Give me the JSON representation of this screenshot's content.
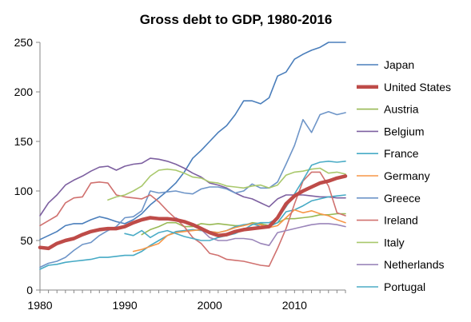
{
  "chart_data": {
    "type": "line",
    "title": "Gross debt to GDP, 1980-2016",
    "xlabel": "",
    "ylabel": "",
    "xlim": [
      1980,
      2016
    ],
    "ylim": [
      0,
      250
    ],
    "x_ticks": [
      1980,
      1990,
      2000,
      2010
    ],
    "y_ticks": [
      0,
      50,
      100,
      150,
      200,
      250
    ],
    "grid": false,
    "legend_position": "right",
    "series": [
      {
        "name": "Japan",
        "color": "#4a7ebb",
        "width": 1.6,
        "start": 1980,
        "values": [
          51,
          55,
          59,
          65,
          67,
          67,
          71,
          74,
          72,
          69,
          67,
          71,
          77,
          86,
          93,
          100,
          108,
          119,
          133,
          141,
          150,
          159,
          166,
          177,
          191,
          191,
          188,
          194,
          216,
          220,
          233,
          238,
          242,
          245,
          250,
          250,
          250
        ]
      },
      {
        "name": "United States",
        "color": "#be4b48",
        "width": 4.5,
        "start": 1980,
        "values": [
          43,
          42,
          47,
          50,
          52,
          56,
          59,
          61,
          62,
          62,
          64,
          68,
          71,
          73,
          72,
          72,
          71,
          69,
          66,
          62,
          58,
          55,
          56,
          59,
          61,
          62,
          63,
          64,
          73,
          87,
          95,
          100,
          104,
          108,
          110,
          113,
          115
        ]
      },
      {
        "name": "Austria",
        "color": "#98b954",
        "width": 1.6,
        "start": 1980,
        "values": [
          null,
          null,
          null,
          null,
          null,
          null,
          null,
          null,
          null,
          null,
          null,
          null,
          56,
          61,
          64,
          68,
          68,
          64,
          64,
          67,
          66,
          67,
          66,
          65,
          65,
          68,
          67,
          65,
          68,
          72,
          72,
          73,
          74,
          76,
          76,
          77,
          77
        ]
      },
      {
        "name": "Belgium",
        "color": "#7d60a0",
        "width": 1.6,
        "start": 1980,
        "values": [
          75,
          88,
          96,
          106,
          111,
          115,
          120,
          124,
          125,
          121,
          125,
          127,
          128,
          133,
          132,
          130,
          127,
          123,
          118,
          114,
          108,
          106,
          103,
          98,
          94,
          92,
          88,
          84,
          92,
          96,
          96,
          96,
          95,
          94,
          94,
          93,
          93
        ]
      },
      {
        "name": "France",
        "color": "#46aac5",
        "width": 1.6,
        "start": 1980,
        "values": [
          21,
          25,
          26,
          28,
          29,
          30,
          31,
          33,
          33,
          34,
          35,
          35,
          39,
          45,
          50,
          55,
          59,
          60,
          61,
          60,
          59,
          58,
          60,
          64,
          66,
          67,
          64,
          64,
          68,
          79,
          81,
          85,
          90,
          92,
          94,
          95,
          96
        ]
      },
      {
        "name": "Germany",
        "color": "#f79646",
        "width": 1.6,
        "start": 1980,
        "values": [
          null,
          null,
          null,
          null,
          null,
          null,
          null,
          null,
          null,
          null,
          null,
          39,
          41,
          44,
          47,
          55,
          58,
          59,
          60,
          61,
          59,
          58,
          60,
          63,
          65,
          67,
          66,
          63,
          65,
          73,
          81,
          78,
          80,
          77,
          75,
          71,
          68
        ]
      },
      {
        "name": "Greece",
        "color": "#6e95c8",
        "width": 1.6,
        "start": 1980,
        "values": [
          23,
          27,
          29,
          33,
          40,
          46,
          48,
          55,
          60,
          64,
          73,
          74,
          80,
          100,
          98,
          99,
          100,
          98,
          97,
          102,
          104,
          104,
          102,
          98,
          100,
          107,
          103,
          103,
          109,
          127,
          146,
          172,
          159,
          177,
          180,
          177,
          179
        ]
      },
      {
        "name": "Ireland",
        "color": "#d0716f",
        "width": 1.6,
        "start": 1980,
        "values": [
          65,
          70,
          75,
          88,
          93,
          94,
          108,
          109,
          108,
          96,
          94,
          93,
          92,
          96,
          89,
          80,
          72,
          64,
          53,
          47,
          37,
          35,
          31,
          30,
          29,
          27,
          25,
          24,
          42,
          62,
          87,
          110,
          119,
          119,
          105,
          78,
          75
        ]
      },
      {
        "name": "Italy",
        "color": "#a9c86c",
        "width": 1.6,
        "start": 1980,
        "values": [
          null,
          null,
          null,
          null,
          null,
          null,
          null,
          null,
          91,
          94,
          96,
          100,
          105,
          115,
          121,
          122,
          121,
          118,
          114,
          113,
          109,
          108,
          105,
          104,
          103,
          105,
          106,
          103,
          106,
          116,
          119,
          120,
          122,
          123,
          118,
          119,
          117
        ]
      },
      {
        "name": "Netherlands",
        "color": "#9b86ba",
        "width": 1.6,
        "start": 1980,
        "values": [
          null,
          null,
          null,
          null,
          null,
          null,
          null,
          null,
          null,
          null,
          null,
          null,
          null,
          null,
          null,
          null,
          73,
          68,
          65,
          61,
          53,
          50,
          50,
          52,
          52,
          51,
          47,
          45,
          58,
          60,
          62,
          64,
          66,
          67,
          67,
          66,
          64
        ]
      },
      {
        "name": "Portugal",
        "color": "#4bacc6",
        "width": 1.6,
        "start": 1980,
        "values": [
          null,
          null,
          null,
          null,
          null,
          null,
          null,
          null,
          null,
          null,
          57,
          55,
          60,
          53,
          58,
          60,
          57,
          54,
          52,
          50,
          50,
          53,
          55,
          57,
          61,
          66,
          68,
          68,
          72,
          84,
          97,
          111,
          126,
          129,
          130,
          129,
          130
        ]
      }
    ]
  }
}
